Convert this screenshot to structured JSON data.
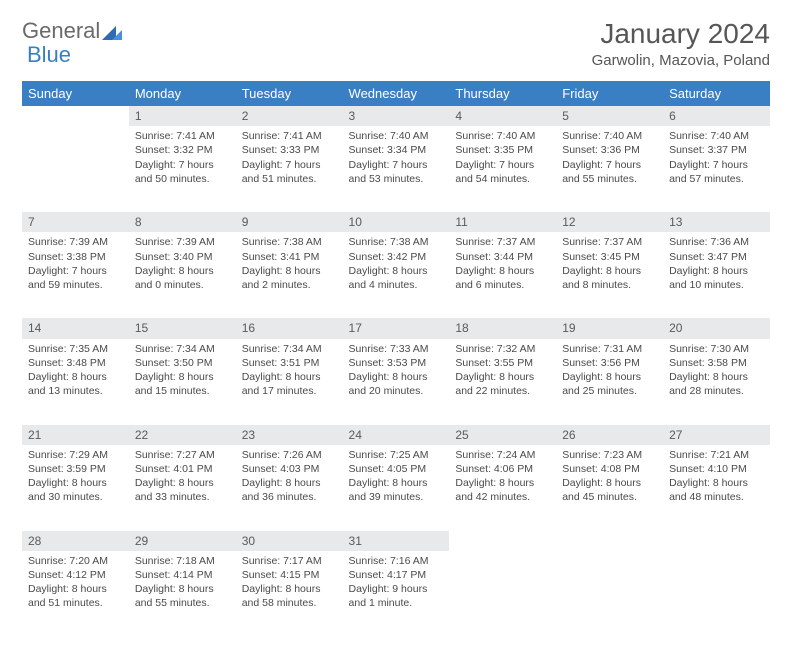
{
  "logo": {
    "text1": "General",
    "text2": "Blue"
  },
  "title": "January 2024",
  "location": "Garwolin, Mazovia, Poland",
  "colors": {
    "header_bg": "#3a7fc4",
    "header_text": "#ffffff",
    "daynum_bg": "#e7e9eb",
    "body_text": "#4a4a4a"
  },
  "weekdays": [
    "Sunday",
    "Monday",
    "Tuesday",
    "Wednesday",
    "Thursday",
    "Friday",
    "Saturday"
  ],
  "weeks": [
    [
      null,
      {
        "n": "1",
        "sunrise": "7:41 AM",
        "sunset": "3:32 PM",
        "daylight": "7 hours and 50 minutes."
      },
      {
        "n": "2",
        "sunrise": "7:41 AM",
        "sunset": "3:33 PM",
        "daylight": "7 hours and 51 minutes."
      },
      {
        "n": "3",
        "sunrise": "7:40 AM",
        "sunset": "3:34 PM",
        "daylight": "7 hours and 53 minutes."
      },
      {
        "n": "4",
        "sunrise": "7:40 AM",
        "sunset": "3:35 PM",
        "daylight": "7 hours and 54 minutes."
      },
      {
        "n": "5",
        "sunrise": "7:40 AM",
        "sunset": "3:36 PM",
        "daylight": "7 hours and 55 minutes."
      },
      {
        "n": "6",
        "sunrise": "7:40 AM",
        "sunset": "3:37 PM",
        "daylight": "7 hours and 57 minutes."
      }
    ],
    [
      {
        "n": "7",
        "sunrise": "7:39 AM",
        "sunset": "3:38 PM",
        "daylight": "7 hours and 59 minutes."
      },
      {
        "n": "8",
        "sunrise": "7:39 AM",
        "sunset": "3:40 PM",
        "daylight": "8 hours and 0 minutes."
      },
      {
        "n": "9",
        "sunrise": "7:38 AM",
        "sunset": "3:41 PM",
        "daylight": "8 hours and 2 minutes."
      },
      {
        "n": "10",
        "sunrise": "7:38 AM",
        "sunset": "3:42 PM",
        "daylight": "8 hours and 4 minutes."
      },
      {
        "n": "11",
        "sunrise": "7:37 AM",
        "sunset": "3:44 PM",
        "daylight": "8 hours and 6 minutes."
      },
      {
        "n": "12",
        "sunrise": "7:37 AM",
        "sunset": "3:45 PM",
        "daylight": "8 hours and 8 minutes."
      },
      {
        "n": "13",
        "sunrise": "7:36 AM",
        "sunset": "3:47 PM",
        "daylight": "8 hours and 10 minutes."
      }
    ],
    [
      {
        "n": "14",
        "sunrise": "7:35 AM",
        "sunset": "3:48 PM",
        "daylight": "8 hours and 13 minutes."
      },
      {
        "n": "15",
        "sunrise": "7:34 AM",
        "sunset": "3:50 PM",
        "daylight": "8 hours and 15 minutes."
      },
      {
        "n": "16",
        "sunrise": "7:34 AM",
        "sunset": "3:51 PM",
        "daylight": "8 hours and 17 minutes."
      },
      {
        "n": "17",
        "sunrise": "7:33 AM",
        "sunset": "3:53 PM",
        "daylight": "8 hours and 20 minutes."
      },
      {
        "n": "18",
        "sunrise": "7:32 AM",
        "sunset": "3:55 PM",
        "daylight": "8 hours and 22 minutes."
      },
      {
        "n": "19",
        "sunrise": "7:31 AM",
        "sunset": "3:56 PM",
        "daylight": "8 hours and 25 minutes."
      },
      {
        "n": "20",
        "sunrise": "7:30 AM",
        "sunset": "3:58 PM",
        "daylight": "8 hours and 28 minutes."
      }
    ],
    [
      {
        "n": "21",
        "sunrise": "7:29 AM",
        "sunset": "3:59 PM",
        "daylight": "8 hours and 30 minutes."
      },
      {
        "n": "22",
        "sunrise": "7:27 AM",
        "sunset": "4:01 PM",
        "daylight": "8 hours and 33 minutes."
      },
      {
        "n": "23",
        "sunrise": "7:26 AM",
        "sunset": "4:03 PM",
        "daylight": "8 hours and 36 minutes."
      },
      {
        "n": "24",
        "sunrise": "7:25 AM",
        "sunset": "4:05 PM",
        "daylight": "8 hours and 39 minutes."
      },
      {
        "n": "25",
        "sunrise": "7:24 AM",
        "sunset": "4:06 PM",
        "daylight": "8 hours and 42 minutes."
      },
      {
        "n": "26",
        "sunrise": "7:23 AM",
        "sunset": "4:08 PM",
        "daylight": "8 hours and 45 minutes."
      },
      {
        "n": "27",
        "sunrise": "7:21 AM",
        "sunset": "4:10 PM",
        "daylight": "8 hours and 48 minutes."
      }
    ],
    [
      {
        "n": "28",
        "sunrise": "7:20 AM",
        "sunset": "4:12 PM",
        "daylight": "8 hours and 51 minutes."
      },
      {
        "n": "29",
        "sunrise": "7:18 AM",
        "sunset": "4:14 PM",
        "daylight": "8 hours and 55 minutes."
      },
      {
        "n": "30",
        "sunrise": "7:17 AM",
        "sunset": "4:15 PM",
        "daylight": "8 hours and 58 minutes."
      },
      {
        "n": "31",
        "sunrise": "7:16 AM",
        "sunset": "4:17 PM",
        "daylight": "9 hours and 1 minute."
      },
      null,
      null,
      null
    ]
  ],
  "labels": {
    "sunrise": "Sunrise: ",
    "sunset": "Sunset: ",
    "daylight": "Daylight: "
  }
}
